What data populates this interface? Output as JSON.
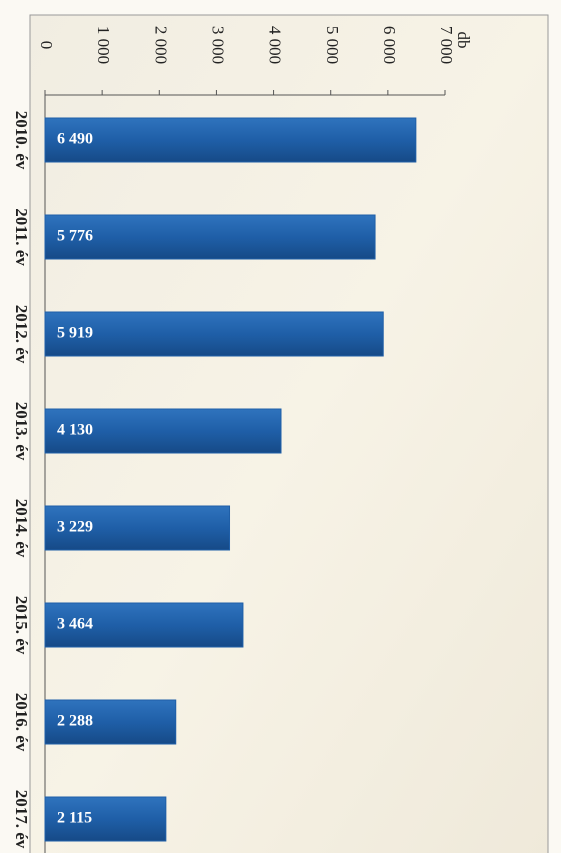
{
  "chart_data": {
    "type": "bar",
    "orientation": "horizontal",
    "value_axis_label": "db",
    "categories": [
      "2010. év",
      "2011. év",
      "2012. év",
      "2013. év",
      "2014. év",
      "2015. év",
      "2016. év",
      "2017. év"
    ],
    "values": [
      6490,
      5776,
      5919,
      4130,
      3229,
      3464,
      2288,
      2115
    ],
    "value_labels": [
      "6 490",
      "5 776",
      "5 919",
      "4 130",
      "3 229",
      "3 464",
      "2 288",
      "2 115"
    ],
    "color": "#1f5fa8",
    "xlim": [
      0,
      7000
    ],
    "xticks": [
      0,
      {
        "value": 1000,
        "label": "1 000"
      },
      {
        "value": 2000,
        "label": "2 000"
      },
      {
        "value": 3000,
        "label": "3 000"
      },
      {
        "value": 4000,
        "label": "4 000"
      },
      {
        "value": 5000,
        "label": "5 000"
      },
      {
        "value": 6000,
        "label": "6 000"
      },
      {
        "value": 7000,
        "label": "7 000"
      }
    ]
  }
}
